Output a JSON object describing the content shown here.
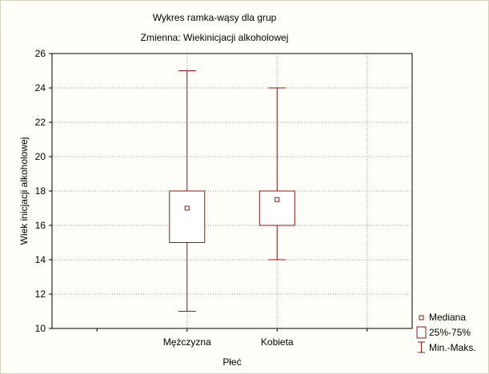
{
  "chart_data": {
    "type": "boxplot",
    "title": "Wykres ramka-wąsy dla grup",
    "subtitle": "Zmienna:  Wiekinicjacji alkoholowej",
    "xlabel": "Płeć",
    "ylabel": "Wiek inicjacji alkoholowej",
    "ylim": [
      10,
      26
    ],
    "yticks": [
      10,
      12,
      14,
      16,
      18,
      20,
      22,
      24,
      26
    ],
    "grid": true,
    "categories": [
      "Mężczyzna",
      "Kobieta"
    ],
    "groups": [
      {
        "category": "Mężczyzna",
        "min": 11,
        "q1": 15,
        "median": 17,
        "q3": 18,
        "max": 25
      },
      {
        "category": "Kobieta",
        "min": 14,
        "q1": 16,
        "median": 17.5,
        "q3": 18,
        "max": 24
      }
    ],
    "legend": {
      "position": "bottom-right",
      "entries": [
        "Mediana",
        "25%-75%",
        "Min.-Maks."
      ]
    },
    "colors": {
      "box": "#8b1a1a",
      "grid": "#9a9a9a",
      "background": "#fffef8"
    }
  }
}
